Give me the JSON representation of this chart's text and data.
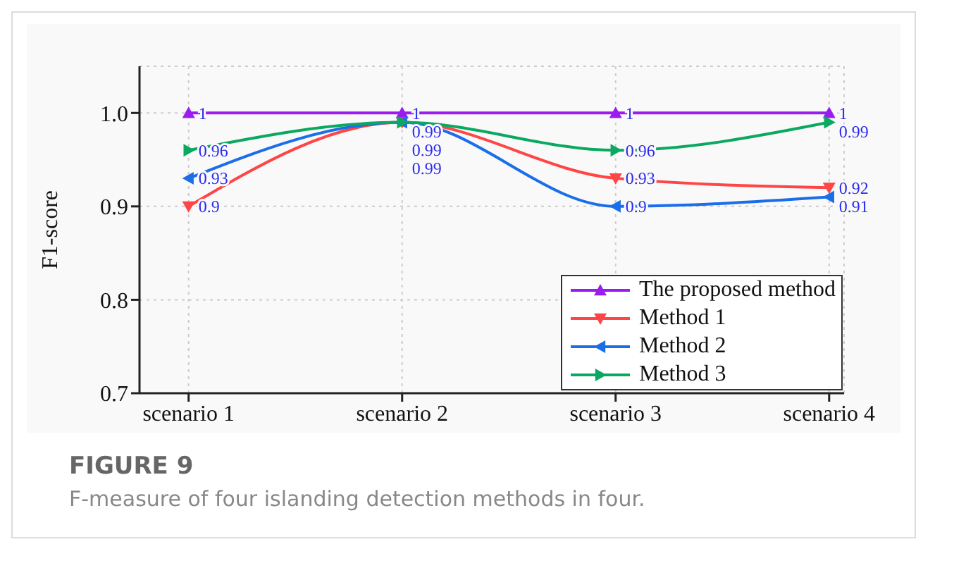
{
  "chart_data": {
    "type": "line",
    "title": "FIGURE 9",
    "subtitle": "F-measure of four islanding detection methods in four.",
    "ylabel": "F1-score",
    "categories": [
      "scenario 1",
      "scenario 2",
      "scenario 3",
      "scenario 4"
    ],
    "series": [
      {
        "name": "The proposed method",
        "color": "#9b1cf0",
        "marker": "triangle",
        "values": [
          1,
          1,
          1,
          1
        ]
      },
      {
        "name": "Method 1",
        "color": "#ff4545",
        "marker": "triangle",
        "values": [
          0.9,
          0.99,
          0.93,
          0.92
        ]
      },
      {
        "name": "Method 2",
        "color": "#1a6ee8",
        "marker": "triangle",
        "values": [
          0.93,
          0.99,
          0.9,
          0.91
        ]
      },
      {
        "name": "Method 3",
        "color": "#0aa860",
        "marker": "triangle",
        "values": [
          0.96,
          0.99,
          0.96,
          0.99
        ]
      }
    ],
    "ylim": [
      0.7,
      1.05
    ],
    "yticks": [
      0.7,
      0.8,
      0.9,
      {
        "value": 1,
        "label": "1.0"
      }
    ],
    "grid": true,
    "legend": "bottom right",
    "data_labels": true
  }
}
